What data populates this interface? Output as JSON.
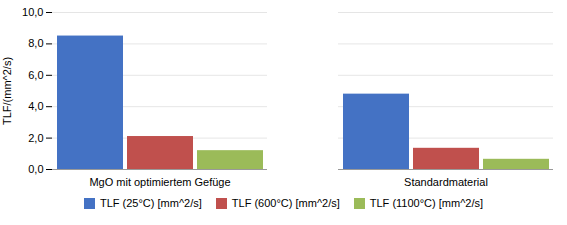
{
  "chart_data": {
    "type": "bar",
    "categories": [
      "MgO mit optimiertem Gefüge",
      "Standardmaterial"
    ],
    "series": [
      {
        "name": "TLF (25°C) [mm^2/s]",
        "color": "#4472C4",
        "values": [
          8.5,
          4.8
        ]
      },
      {
        "name": "TLF (600°C) [mm^2/s]",
        "color": "#C0504D",
        "values": [
          2.1,
          1.35
        ]
      },
      {
        "name": "TLF (1100°C) [mm^2/s]",
        "color": "#9BBB59",
        "values": [
          1.2,
          0.65
        ]
      }
    ],
    "ylabel": "TLF/(mm^2/s)",
    "ylim": [
      0,
      10.0
    ],
    "yticks": [
      {
        "value": 0.0,
        "label": "0,0"
      },
      {
        "value": 2.0,
        "label": "2,0"
      },
      {
        "value": 4.0,
        "label": "4,0"
      },
      {
        "value": 6.0,
        "label": "6,0"
      },
      {
        "value": 8.0,
        "label": "8,0"
      },
      {
        "value": 10.0,
        "label": "10,0"
      }
    ],
    "grid": true,
    "legend": "bottom"
  }
}
